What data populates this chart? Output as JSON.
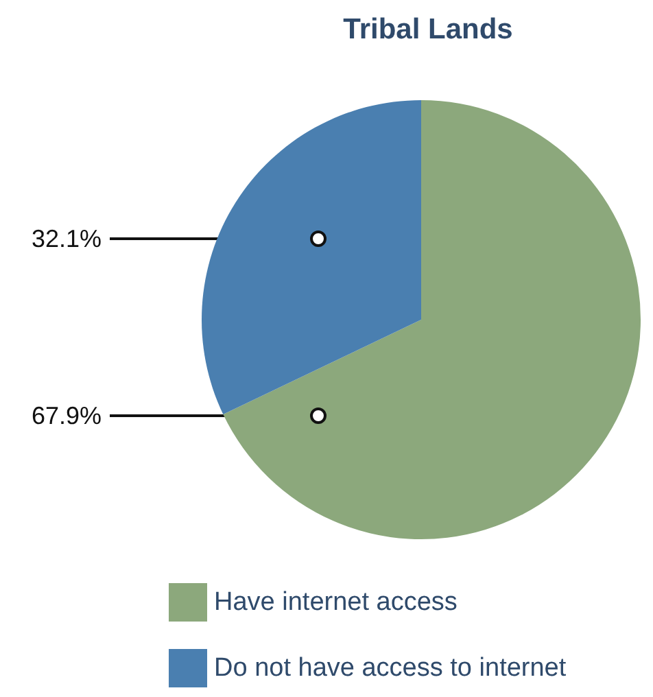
{
  "chart_data": {
    "type": "pie",
    "title": "Tribal Lands",
    "categories": [
      "Have internet access",
      "Do not have access to internet"
    ],
    "values": [
      67.9,
      32.1
    ],
    "colors": [
      "#8ca87c",
      "#4a7fb0"
    ],
    "value_labels": [
      "67.9%",
      "32.1%"
    ],
    "legend": "bottom"
  }
}
